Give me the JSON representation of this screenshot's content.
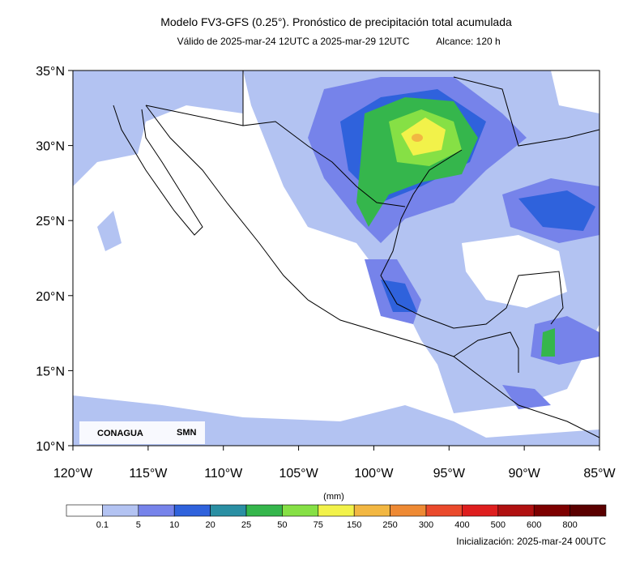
{
  "header": {
    "title": "Modelo FV3-GFS (0.25°). Pronóstico de precipitación total acumulada",
    "subtitle": "Válido de 2025-mar-24 12UTC a 2025-mar-29 12UTC",
    "range": "Alcance: 120 h"
  },
  "map": {
    "lat_labels": [
      "35°N",
      "30°N",
      "25°N",
      "20°N",
      "15°N",
      "10°N"
    ],
    "lon_labels": [
      "120°W",
      "115°W",
      "110°W",
      "105°W",
      "100°W",
      "95°W",
      "90°W",
      "85°W"
    ],
    "logos": [
      "CONAGUA",
      "SMN"
    ]
  },
  "colorbar": {
    "unit": "(mm)",
    "labels": [
      "0.1",
      "5",
      "10",
      "20",
      "25",
      "50",
      "75",
      "150",
      "250",
      "300",
      "400",
      "500",
      "600",
      "800"
    ],
    "colors": [
      "#ffffff",
      "#b3c3f2",
      "#7683ea",
      "#2f62dc",
      "#2a8fa3",
      "#35b64c",
      "#86e045",
      "#f2f24a",
      "#f2b742",
      "#ee8a34",
      "#ea4a2c",
      "#de1e1e",
      "#b01010",
      "#7d0000",
      "#5a0000"
    ]
  },
  "footer": {
    "init": "Inicialización: 2025-mar-24 00UTC"
  }
}
